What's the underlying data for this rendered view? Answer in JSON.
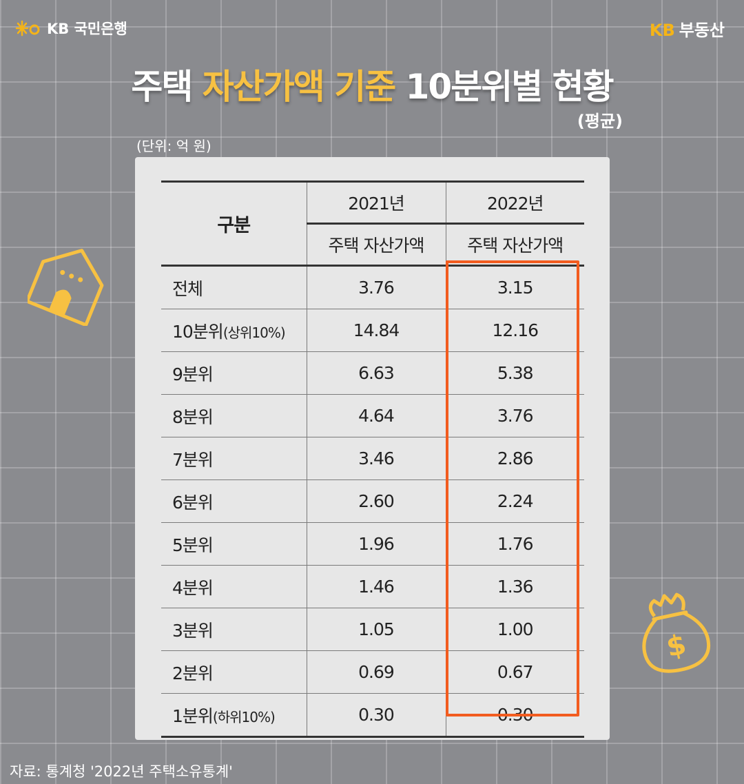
{
  "header": {
    "bank_logo": "KB 국민은행",
    "brand_kb": "KB",
    "brand_name": "부동산"
  },
  "title": {
    "part1": "주택 ",
    "highlight": "자산가액 기준",
    "part2": " 10분위별 현황",
    "subtitle": "(평균)"
  },
  "unit": "(단위: 억 원)",
  "table": {
    "row_header": "구분",
    "years": [
      "2021년",
      "2022년"
    ],
    "sub_header": "주택 자산가액",
    "rows": [
      {
        "label": "전체",
        "label_small": "",
        "v2021": "3.76",
        "v2022": "3.15"
      },
      {
        "label": "10분위",
        "label_small": "(상위10%)",
        "v2021": "14.84",
        "v2022": "12.16"
      },
      {
        "label": "9분위",
        "label_small": "",
        "v2021": "6.63",
        "v2022": "5.38"
      },
      {
        "label": "8분위",
        "label_small": "",
        "v2021": "4.64",
        "v2022": "3.76"
      },
      {
        "label": "7분위",
        "label_small": "",
        "v2021": "3.46",
        "v2022": "2.86"
      },
      {
        "label": "6분위",
        "label_small": "",
        "v2021": "2.60",
        "v2022": "2.24"
      },
      {
        "label": "5분위",
        "label_small": "",
        "v2021": "1.96",
        "v2022": "1.76"
      },
      {
        "label": "4분위",
        "label_small": "",
        "v2021": "1.46",
        "v2022": "1.36"
      },
      {
        "label": "3분위",
        "label_small": "",
        "v2021": "1.05",
        "v2022": "1.00"
      },
      {
        "label": "2분위",
        "label_small": "",
        "v2021": "0.69",
        "v2022": "0.67"
      },
      {
        "label": "1분위",
        "label_small": "(하위10%)",
        "v2021": "0.30",
        "v2022": "0.30"
      }
    ]
  },
  "source": "자료: 통계청 '2022년 주택소유통계'",
  "icons": [
    "kb-star-icon",
    "house-icon",
    "money-bag-icon"
  ],
  "colors": {
    "highlight_box": "#f25c1f",
    "accent_yellow": "#f7c142",
    "kb_yellow": "#f5b417"
  }
}
